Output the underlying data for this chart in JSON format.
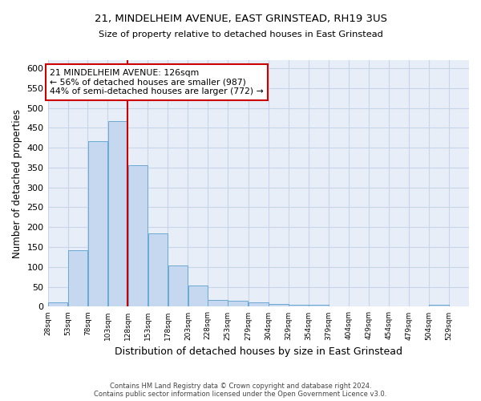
{
  "title_line1": "21, MINDELHEIM AVENUE, EAST GRINSTEAD, RH19 3US",
  "title_line2": "Size of property relative to detached houses in East Grinstead",
  "xlabel": "Distribution of detached houses by size in East Grinstead",
  "ylabel": "Number of detached properties",
  "bar_values": [
    10,
    143,
    416,
    467,
    355,
    185,
    103,
    54,
    16,
    15,
    11,
    6,
    5,
    5,
    0,
    0,
    0,
    0,
    5
  ],
  "bar_left_edges": [
    28,
    53,
    78,
    103,
    128,
    153,
    178,
    203,
    228,
    253,
    279,
    304,
    329,
    354,
    379,
    404,
    429,
    454,
    504
  ],
  "bin_width": 25,
  "x_tick_labels": [
    "28sqm",
    "53sqm",
    "78sqm",
    "103sqm",
    "128sqm",
    "153sqm",
    "178sqm",
    "203sqm",
    "228sqm",
    "253sqm",
    "279sqm",
    "304sqm",
    "329sqm",
    "354sqm",
    "379sqm",
    "404sqm",
    "429sqm",
    "454sqm",
    "479sqm",
    "504sqm",
    "529sqm"
  ],
  "x_tick_positions": [
    28,
    53,
    78,
    103,
    128,
    153,
    178,
    203,
    228,
    253,
    279,
    304,
    329,
    354,
    379,
    404,
    429,
    454,
    479,
    504,
    529
  ],
  "bar_color": "#c5d8f0",
  "bar_edge_color": "#6aaad4",
  "vline_x": 128,
  "vline_color": "#cc0000",
  "annotation_text": "21 MINDELHEIM AVENUE: 126sqm\n← 56% of detached houses are smaller (987)\n44% of semi-detached houses are larger (772) →",
  "annotation_box_color": "#ffffff",
  "annotation_box_edge": "#cc0000",
  "ylim": [
    0,
    620
  ],
  "ytick_values": [
    0,
    50,
    100,
    150,
    200,
    250,
    300,
    350,
    400,
    450,
    500,
    550,
    600
  ],
  "grid_color": "#c8d4e8",
  "background_color": "#e8eef8",
  "footnote_line1": "Contains HM Land Registry data © Crown copyright and database right 2024.",
  "footnote_line2": "Contains public sector information licensed under the Open Government Licence v3.0."
}
